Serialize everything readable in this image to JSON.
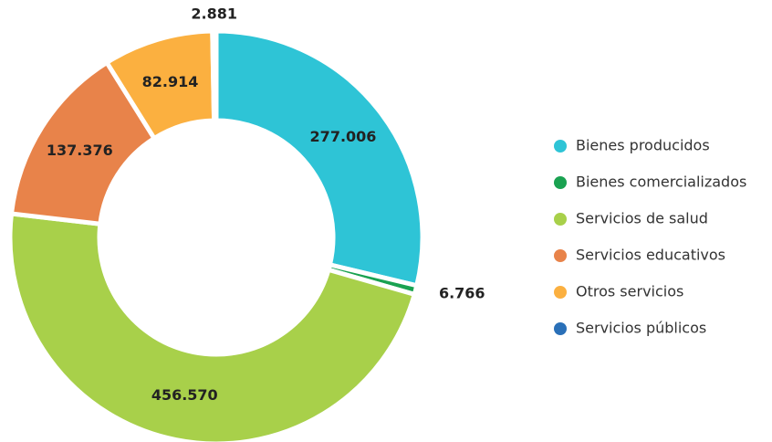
{
  "chart_data": {
    "type": "donut",
    "categories": [
      "Bienes producidos",
      "Bienes comercializados",
      "Servicios de salud",
      "Servicios educativos",
      "Otros servicios",
      "Servicios públicos"
    ],
    "values": [
      277006,
      6766,
      456570,
      137376,
      82914,
      2881
    ],
    "value_labels": [
      "277.006",
      "6.766",
      "456.570",
      "137.376",
      "82.914",
      "2.881"
    ],
    "colors": [
      "#2ec4d6",
      "#1aa251",
      "#a8d04a",
      "#e8834a",
      "#fbb040",
      "#2a70b8"
    ],
    "legend": "right"
  }
}
